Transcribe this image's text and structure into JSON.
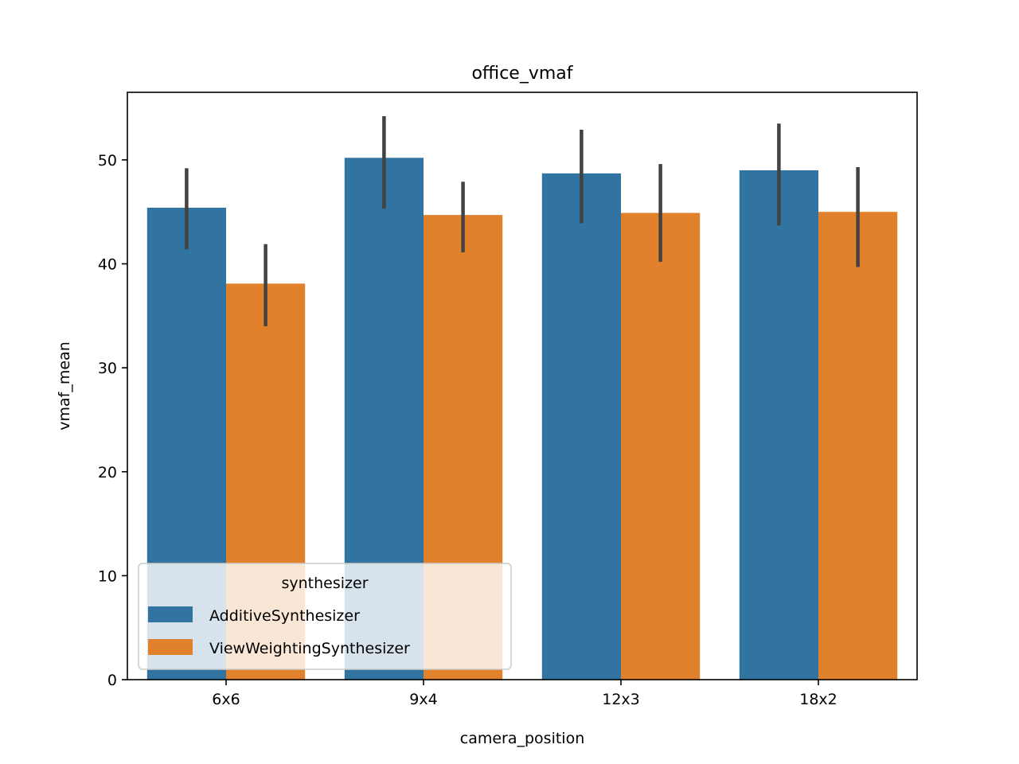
{
  "chart_data": {
    "type": "bar",
    "title": "office_vmaf",
    "xlabel": "camera_position",
    "ylabel": "vmaf_mean",
    "categories": [
      "6x6",
      "9x4",
      "12x3",
      "18x2"
    ],
    "ylim": [
      0,
      56.5
    ],
    "yticks": [
      0,
      10,
      20,
      30,
      40,
      50
    ],
    "grid": false,
    "series": [
      {
        "name": "AdditiveSynthesizer",
        "color": "#3274a1",
        "values": [
          45.4,
          50.2,
          48.7,
          49.0
        ],
        "err_low": [
          41.4,
          45.3,
          43.9,
          43.7
        ],
        "err_high": [
          49.2,
          54.2,
          52.9,
          53.5
        ]
      },
      {
        "name": "ViewWeightingSynthesizer",
        "color": "#e1812c",
        "values": [
          38.1,
          44.7,
          44.9,
          45.0
        ],
        "err_low": [
          34.0,
          41.1,
          40.2,
          39.7
        ],
        "err_high": [
          41.9,
          47.9,
          49.6,
          49.3
        ]
      }
    ],
    "legend": {
      "title": "synthesizer",
      "placement": "lower-left"
    }
  }
}
